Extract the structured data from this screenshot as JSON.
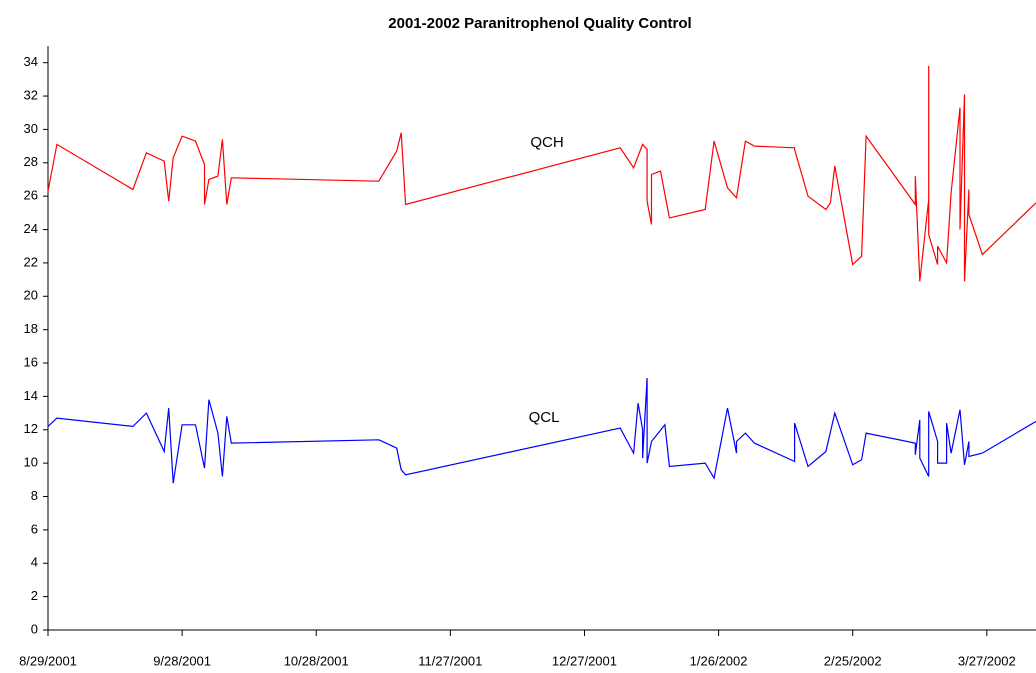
{
  "chart_data": {
    "type": "line",
    "title": "2001-2002 Paranitrophenol Quality Control",
    "xlim": [
      "8/29/2001",
      "4/7/2002"
    ],
    "xticks": [
      "8/29/2001",
      "9/28/2001",
      "10/28/2001",
      "11/27/2001",
      "12/27/2001",
      "1/26/2002",
      "2/25/2002",
      "3/27/2002"
    ],
    "ylim": [
      0,
      35
    ],
    "yticks": [
      0,
      2,
      4,
      6,
      8,
      10,
      12,
      14,
      16,
      18,
      20,
      22,
      24,
      26,
      28,
      30,
      32,
      34
    ],
    "grid": false,
    "annotations": [
      "QCH",
      "QCL"
    ],
    "series": [
      {
        "color": "#ff0000",
        "x": [
          "8/29/2001",
          "8/31/2001",
          "9/17/2001",
          "9/20/2001",
          "9/24/2001",
          "9/25/2001",
          "9/26/2001",
          "9/28/2001",
          "10/1/2001",
          "10/3/2001",
          "10/3/2001",
          "10/4/2001",
          "10/6/2001",
          "10/7/2001",
          "10/8/2001",
          "10/9/2001",
          "11/11/2001",
          "11/15/2001",
          "11/16/2001",
          "11/17/2001",
          "1/4/2002",
          "1/7/2002",
          "1/9/2002",
          "1/10/2002",
          "1/10/2002",
          "1/11/2002",
          "1/11/2002",
          "1/13/2002",
          "1/15/2002",
          "1/23/2002",
          "1/25/2002",
          "1/28/2002",
          "1/30/2002",
          "2/1/2002",
          "2/3/2002",
          "2/12/2002",
          "2/12/2002",
          "2/15/2002",
          "2/19/2002",
          "2/20/2002",
          "2/21/2002",
          "2/25/2002",
          "2/27/2002",
          "2/28/2002",
          "3/11/2002",
          "3/11/2002",
          "3/12/2002",
          "3/14/2002",
          "3/14/2002",
          "3/14/2002",
          "3/16/2002",
          "3/16/2002",
          "3/18/2002",
          "3/19/2002",
          "3/21/2002",
          "3/21/2002",
          "3/22/2002",
          "3/22/2002",
          "3/23/2002",
          "3/23/2002",
          "3/26/2002",
          "4/7/2002"
        ],
        "values": [
          26.3,
          29.1,
          26.4,
          28.6,
          28.1,
          25.7,
          28.3,
          29.6,
          29.3,
          27.9,
          25.5,
          27.0,
          27.2,
          29.4,
          25.5,
          27.1,
          26.9,
          28.7,
          29.8,
          25.5,
          28.9,
          27.7,
          29.1,
          28.8,
          25.7,
          24.3,
          27.3,
          27.5,
          24.7,
          25.2,
          29.3,
          26.5,
          25.9,
          29.3,
          29.0,
          28.9,
          28.8,
          26.0,
          25.2,
          25.6,
          27.8,
          21.9,
          22.4,
          29.6,
          25.5,
          27.2,
          20.9,
          25.8,
          33.8,
          23.7,
          21.9,
          23.0,
          22.0,
          26.2,
          31.3,
          24.0,
          32.1,
          20.9,
          26.4,
          24.9,
          22.5,
          25.6
        ]
      },
      {
        "color": "#0000ff",
        "x": [
          "8/29/2001",
          "8/31/2001",
          "9/17/2001",
          "9/20/2001",
          "9/24/2001",
          "9/25/2001",
          "9/26/2001",
          "9/28/2001",
          "10/1/2001",
          "10/3/2001",
          "10/4/2001",
          "10/6/2001",
          "10/7/2001",
          "10/8/2001",
          "10/9/2001",
          "11/11/2001",
          "11/15/2001",
          "11/16/2001",
          "11/17/2001",
          "1/4/2002",
          "1/7/2002",
          "1/8/2002",
          "1/9/2002",
          "1/9/2002",
          "1/10/2002",
          "1/10/2002",
          "1/11/2002",
          "1/14/2002",
          "1/15/2002",
          "1/23/2002",
          "1/25/2002",
          "1/28/2002",
          "1/30/2002",
          "1/30/2002",
          "2/1/2002",
          "2/3/2002",
          "2/12/2002",
          "2/12/2002",
          "2/15/2002",
          "2/19/2002",
          "2/21/2002",
          "2/25/2002",
          "2/27/2002",
          "2/28/2002",
          "3/11/2002",
          "3/11/2002",
          "3/12/2002",
          "3/12/2002",
          "3/14/2002",
          "3/14/2002",
          "3/16/2002",
          "3/16/2002",
          "3/18/2002",
          "3/18/2002",
          "3/19/2002",
          "3/21/2002",
          "3/22/2002",
          "3/23/2002",
          "3/23/2002",
          "3/26/2002",
          "4/7/2002"
        ],
        "values": [
          12.2,
          12.7,
          12.2,
          13.0,
          10.7,
          13.3,
          8.8,
          12.3,
          12.3,
          9.7,
          13.8,
          11.8,
          9.2,
          12.8,
          11.2,
          11.4,
          10.9,
          9.6,
          9.3,
          12.1,
          10.6,
          13.6,
          12.0,
          10.3,
          15.1,
          10.0,
          11.3,
          12.3,
          9.8,
          10.0,
          9.1,
          13.3,
          10.6,
          11.3,
          11.8,
          11.2,
          10.1,
          12.4,
          9.8,
          10.7,
          13.0,
          9.9,
          10.2,
          11.8,
          11.2,
          10.5,
          12.6,
          10.3,
          9.2,
          13.1,
          11.3,
          10.0,
          10.0,
          12.4,
          10.6,
          13.2,
          9.9,
          11.3,
          10.4,
          10.6,
          12.5
        ]
      }
    ]
  }
}
